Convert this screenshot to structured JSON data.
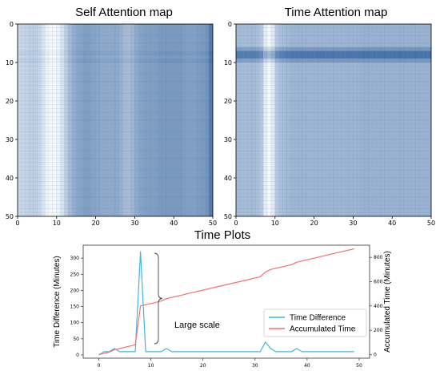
{
  "figure": {
    "heatmap_left_title": "Self Attention map",
    "heatmap_right_title": "Time Attention map",
    "plots_title": "Time Plots"
  },
  "chart_data": [
    {
      "type": "heatmap",
      "title": "Self Attention map",
      "xlim": [
        0,
        50
      ],
      "ylim": [
        0,
        50
      ],
      "x_ticks": [
        0,
        10,
        20,
        30,
        40,
        50
      ],
      "y_ticks": [
        0,
        10,
        20,
        30,
        40,
        50
      ],
      "y_inverted": true,
      "colormap": "Blues",
      "column_intensity": [
        0.22,
        0.24,
        0.26,
        0.28,
        0.28,
        0.24,
        0.16,
        0.06,
        0.02,
        0.02,
        0.06,
        0.16,
        0.3,
        0.42,
        0.5,
        0.54,
        0.56,
        0.58,
        0.58,
        0.56,
        0.54,
        0.52,
        0.52,
        0.52,
        0.52,
        0.52,
        0.48,
        0.42,
        0.4,
        0.44,
        0.52,
        0.56,
        0.58,
        0.58,
        0.58,
        0.6,
        0.62,
        0.62,
        0.62,
        0.62,
        0.62,
        0.62,
        0.6,
        0.58,
        0.58,
        0.58,
        0.6,
        0.62,
        0.66,
        0.82
      ],
      "row_band": {
        "rows": [
          7,
          9
        ],
        "delta": 0.04
      },
      "color_low": "#f7fbff",
      "color_high": "#2b5d9b"
    },
    {
      "type": "heatmap",
      "title": "Time Attention map",
      "xlim": [
        0,
        50
      ],
      "ylim": [
        0,
        50
      ],
      "x_ticks": [
        0,
        10,
        20,
        30,
        40,
        50
      ],
      "y_ticks": [
        0,
        10,
        20,
        30,
        40,
        50
      ],
      "y_inverted": true,
      "colormap": "Blues",
      "column_intensity": [
        0.4,
        0.4,
        0.4,
        0.4,
        0.4,
        0.38,
        0.32,
        0.1,
        0.02,
        0.12,
        0.32,
        0.38,
        0.4,
        0.42,
        0.44,
        0.44,
        0.44,
        0.44,
        0.44,
        0.44,
        0.44,
        0.44,
        0.44,
        0.44,
        0.44,
        0.44,
        0.44,
        0.44,
        0.44,
        0.44,
        0.44,
        0.46,
        0.46,
        0.46,
        0.46,
        0.46,
        0.46,
        0.46,
        0.46,
        0.46,
        0.46,
        0.46,
        0.46,
        0.46,
        0.46,
        0.46,
        0.46,
        0.46,
        0.46,
        0.46
      ],
      "row_band": {
        "rows": [
          6,
          7,
          8,
          9
        ],
        "delta": [
          0.18,
          0.4,
          0.4,
          0.18
        ]
      },
      "color_low": "#f7fbff",
      "color_high": "#2b5d9b"
    },
    {
      "type": "line",
      "title": "Time Plots",
      "xlim": [
        -3,
        52
      ],
      "x_ticks": [
        0,
        10,
        20,
        30,
        40,
        50
      ],
      "y_left": {
        "label": "Time Difference (Minutes)",
        "lim": [
          -10,
          340
        ],
        "ticks": [
          0,
          50,
          100,
          150,
          200,
          250,
          300
        ]
      },
      "y_right": {
        "label": "Accumulated Time (Minutes)",
        "lim": [
          -30,
          900
        ],
        "ticks": [
          0,
          200,
          400,
          600,
          800
        ]
      },
      "series": [
        {
          "name": "Time Difference",
          "axis": "left",
          "color": "#44b4e0",
          "x": [
            0,
            1,
            2,
            3,
            4,
            5,
            6,
            7,
            8,
            9,
            10,
            11,
            12,
            13,
            14,
            15,
            16,
            17,
            18,
            19,
            20,
            21,
            22,
            23,
            24,
            25,
            26,
            27,
            28,
            29,
            30,
            31,
            32,
            33,
            34,
            35,
            36,
            37,
            38,
            39,
            40,
            41,
            42,
            43,
            44,
            45,
            46,
            47,
            48,
            49
          ],
          "values": [
            0,
            10,
            10,
            20,
            10,
            10,
            10,
            10,
            320,
            10,
            10,
            10,
            10,
            20,
            10,
            10,
            10,
            10,
            10,
            10,
            10,
            10,
            10,
            10,
            10,
            10,
            10,
            10,
            10,
            10,
            10,
            10,
            40,
            20,
            10,
            10,
            10,
            10,
            20,
            10,
            10,
            10,
            10,
            10,
            10,
            10,
            10,
            10,
            10,
            10
          ]
        },
        {
          "name": "Accumulated Time",
          "axis": "right",
          "color": "#f07070",
          "x": [
            0,
            1,
            2,
            3,
            4,
            5,
            6,
            7,
            8,
            9,
            10,
            11,
            12,
            13,
            14,
            15,
            16,
            17,
            18,
            19,
            20,
            21,
            22,
            23,
            24,
            25,
            26,
            27,
            28,
            29,
            30,
            31,
            32,
            33,
            34,
            35,
            36,
            37,
            38,
            39,
            40,
            41,
            42,
            43,
            44,
            45,
            46,
            47,
            48,
            49
          ],
          "values": [
            0,
            10,
            20,
            40,
            50,
            60,
            70,
            80,
            400,
            410,
            420,
            430,
            440,
            460,
            470,
            480,
            490,
            500,
            510,
            520,
            530,
            540,
            550,
            560,
            570,
            580,
            590,
            600,
            610,
            620,
            630,
            640,
            680,
            700,
            710,
            720,
            730,
            740,
            760,
            770,
            780,
            790,
            800,
            810,
            820,
            830,
            840,
            850,
            860,
            870
          ]
        }
      ],
      "annotation": "Large scale",
      "legend": {
        "placement": "lower-right"
      }
    }
  ]
}
